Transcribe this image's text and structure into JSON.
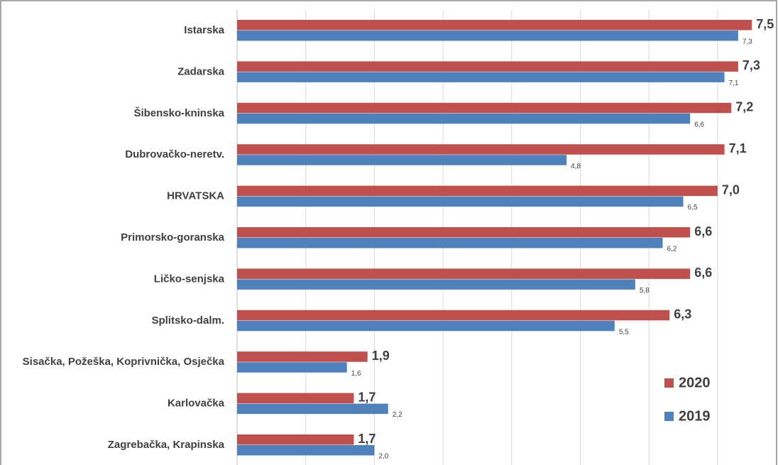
{
  "chart_data": {
    "type": "bar",
    "orientation": "horizontal",
    "categories": [
      "Istarska",
      "Zadarska",
      "Šibensko-kninska",
      "Dubrovačko-neretv.",
      "HRVATSKA",
      "Primorsko-goranska",
      "Ličko-senjska",
      "Splitsko-dalm.",
      "Sisačka, Požeška, Koprivnička, Osječka",
      "Karlovačka",
      "Zagrebačka, Krapinska"
    ],
    "series": [
      {
        "name": "2020",
        "color": "#c0504d",
        "values": [
          7.5,
          7.3,
          7.2,
          7.1,
          7.0,
          6.6,
          6.6,
          6.3,
          1.9,
          1.7,
          1.7
        ],
        "value_labels": [
          "7,5",
          "7,3",
          "7,2",
          "7,1",
          "7,0",
          "6,6",
          "6,6",
          "6,3",
          "1,9",
          "1,7",
          "1,7"
        ]
      },
      {
        "name": "2019",
        "color": "#4f81bd",
        "values": [
          7.3,
          7.1,
          6.6,
          4.8,
          6.5,
          6.2,
          5.8,
          5.5,
          1.6,
          2.2,
          2.0
        ],
        "value_labels": [
          "7,3",
          "7,1",
          "6,6",
          "4,8",
          "6,5",
          "6,2",
          "5,8",
          "5,5",
          "1,6",
          "2,2",
          "2,0"
        ]
      }
    ],
    "xlim": [
      0,
      7.85
    ],
    "xticks": [
      0,
      1,
      2,
      3,
      4,
      5,
      6,
      7
    ],
    "grid": true,
    "legend": "bottom-right"
  }
}
